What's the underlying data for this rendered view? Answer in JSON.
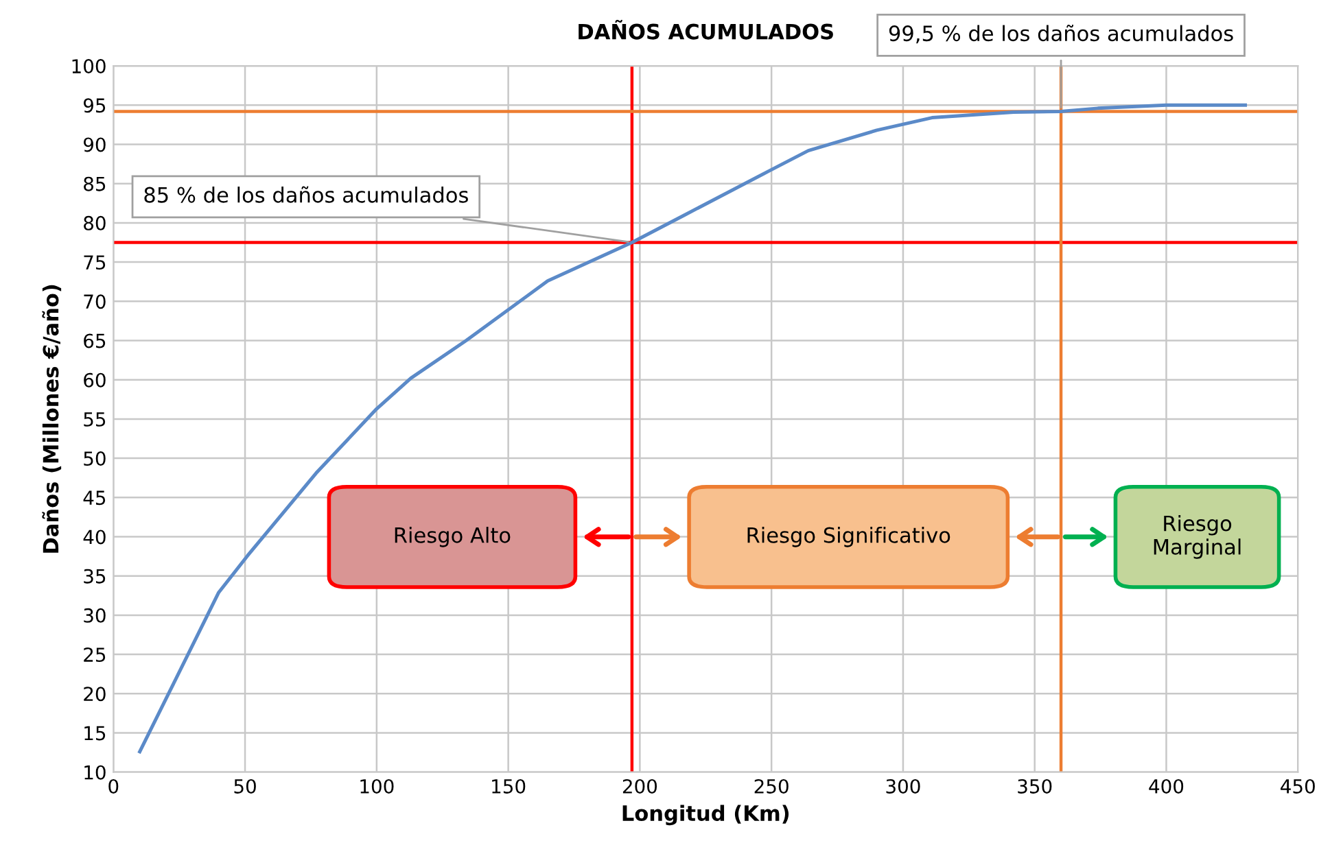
{
  "chart_data": {
    "type": "line",
    "title": "DAÑOS ACUMULADOS",
    "xlabel": "Longitud (Km)",
    "ylabel": "Daños (Millones €/año)",
    "xlim": [
      0,
      450
    ],
    "xticks": [
      0,
      50,
      100,
      150,
      200,
      250,
      300,
      350,
      400,
      450
    ],
    "ylim": [
      10,
      100
    ],
    "yticks": [
      10,
      15,
      20,
      25,
      30,
      35,
      40,
      45,
      50,
      55,
      60,
      65,
      70,
      75,
      80,
      85,
      90,
      95,
      100
    ],
    "grid": true,
    "marker": "none",
    "line_style": "solid",
    "series": [
      {
        "color": "#5b8ac8",
        "x": [
          10,
          40,
          51,
          77,
          100,
          113,
          134,
          165,
          197,
          217,
          249,
          264,
          290,
          311,
          342,
          360,
          374,
          400,
          430
        ],
        "values": [
          12.6,
          32.9,
          37.6,
          48.1,
          56.3,
          60.2,
          65,
          72.6,
          77.5,
          81,
          86.6,
          89.2,
          91.8,
          93.4,
          94.1,
          94.2,
          94.6,
          95,
          95
        ]
      }
    ],
    "ref_lines": [
      {
        "axis": "y",
        "value": 77.5,
        "color": "#ff0000"
      },
      {
        "axis": "x",
        "value": 197,
        "color": "#ff0000"
      },
      {
        "axis": "y",
        "value": 94.2,
        "color": "#ed7d31"
      },
      {
        "axis": "x",
        "value": 360,
        "color": "#ed7d31"
      }
    ],
    "annotations": [
      {
        "text": "85 % de los daños acumulados",
        "x": 197,
        "y": 77.5
      },
      {
        "text": "99,5 % de los daños acumulados",
        "x": 360,
        "y": 94.2
      },
      "Riesgo Alto",
      "Riesgo Significativo",
      "Riesgo\nMarginal"
    ]
  }
}
